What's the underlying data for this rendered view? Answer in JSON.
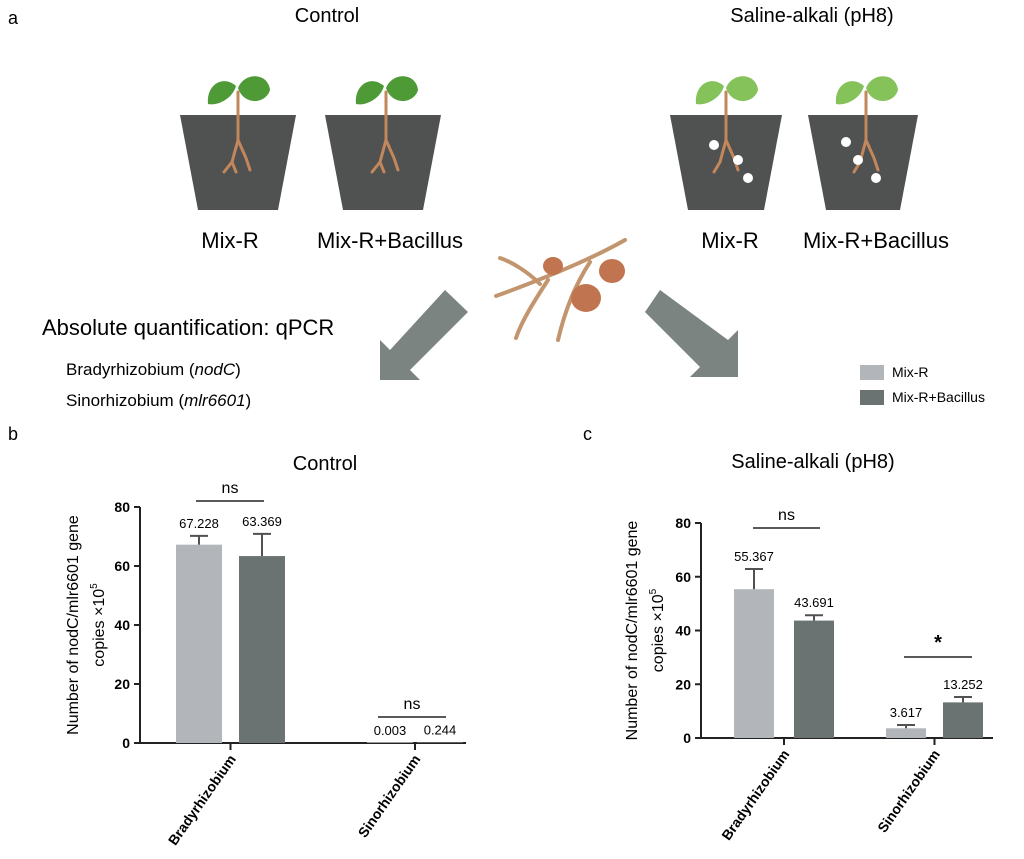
{
  "panel_a": {
    "letter": "a",
    "control_title": "Control",
    "saline_title": "Saline-alkali (pH8)",
    "pot_labels": [
      "Mix-R",
      "Mix-R+Bacillus",
      "Mix-R",
      "Mix-R+Bacillus"
    ],
    "method_title": "Absolute quantification:  qPCR",
    "gene1_name": "Bradyrhizobium (",
    "gene1_italic": "nodC",
    "gene1_close": ")",
    "gene2_name": "Sinorhizobium (",
    "gene2_italic": "mlr6601",
    "gene2_close": ")",
    "colors": {
      "pot": "#505151",
      "leaf_control": "#4e9a36",
      "leaf_saline": "#86c25a",
      "root": "#c2875a",
      "nodule": "#c0744f",
      "arrow": "#7b8481"
    }
  },
  "legend": {
    "items": [
      {
        "label": "Mix-R",
        "color": "#b2b5ba"
      },
      {
        "label": "Mix-R+Bacillus",
        "color": "#6b7372"
      }
    ]
  },
  "chart_data": [
    {
      "type": "bar",
      "panel": "b",
      "title": "Control",
      "ylabel_line1": "Number of nodC/mlr6601 gene",
      "ylabel_line2": "copies ×10",
      "ylabel_sup": "5",
      "ylim": [
        0,
        80
      ],
      "yticks": [
        0,
        20,
        40,
        60,
        80
      ],
      "categories": [
        "Bradyrhizobium",
        "Sinorhizobium"
      ],
      "series": [
        {
          "name": "Mix-R",
          "values": [
            67.228,
            0.003
          ],
          "errors": [
            3,
            0
          ]
        },
        {
          "name": "Mix-R+Bacillus",
          "values": [
            63.369,
            0.244
          ],
          "errors": [
            7.5,
            0
          ]
        }
      ],
      "value_labels": [
        [
          "67.228",
          "0.003"
        ],
        [
          "63.369",
          "0.244"
        ]
      ],
      "significance": [
        "ns",
        "ns"
      ]
    },
    {
      "type": "bar",
      "panel": "c",
      "title": "Saline-alkali (pH8)",
      "ylabel_line1": "Number of nodC/mlr6601 gene",
      "ylabel_line2": "copies ×10",
      "ylabel_sup": "5",
      "ylim": [
        0,
        80
      ],
      "yticks": [
        0,
        20,
        40,
        60,
        80
      ],
      "categories": [
        "Bradyrhizobium",
        "Sinorhizobium"
      ],
      "series": [
        {
          "name": "Mix-R",
          "values": [
            55.367,
            3.617
          ],
          "errors": [
            7.5,
            1.2
          ]
        },
        {
          "name": "Mix-R+Bacillus",
          "values": [
            43.691,
            13.252
          ],
          "errors": [
            2,
            2
          ]
        }
      ],
      "value_labels": [
        [
          "55.367",
          "3.617"
        ],
        [
          "43.691",
          "13.252"
        ]
      ],
      "significance": [
        "ns",
        "*"
      ]
    }
  ]
}
